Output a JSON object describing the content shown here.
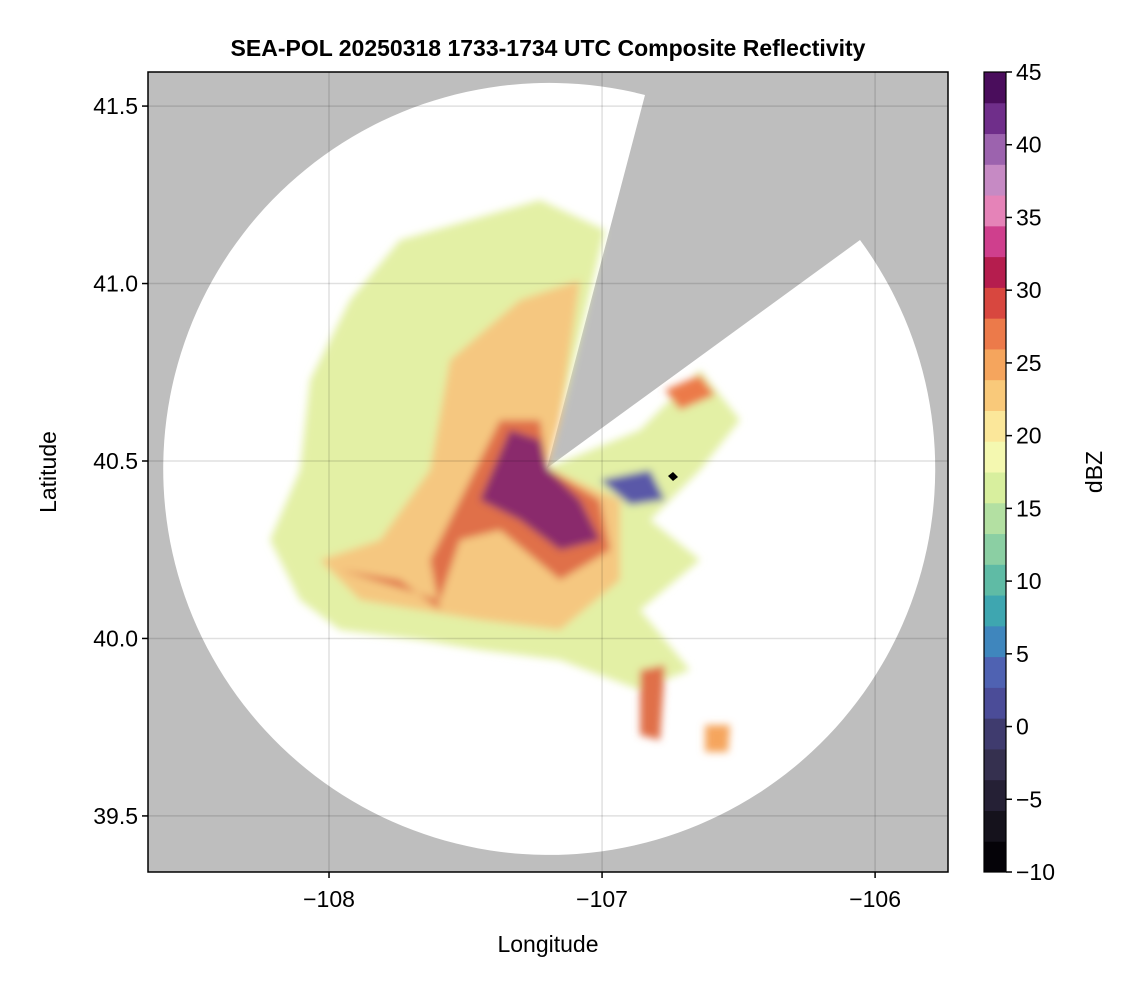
{
  "chart_data": {
    "type": "map",
    "title": "SEA-POL 20250318 1733-1734 UTC Composite Reflectivity",
    "x_label": "Longitude",
    "y_label": "Latitude",
    "xlim": [
      -108.663,
      -105.733
    ],
    "ylim": [
      39.342,
      41.596
    ],
    "xticks": [
      {
        "value": -108,
        "label": "−108"
      },
      {
        "value": -107,
        "label": "−107"
      },
      {
        "value": -106,
        "label": "−106"
      }
    ],
    "yticks": [
      {
        "value": 39.5,
        "label": "39.5"
      },
      {
        "value": 40.0,
        "label": "40.0"
      },
      40.5,
      {
        "value": 41.0,
        "label": "41.0"
      },
      41.5
    ],
    "grid": true,
    "background": "#bebebe",
    "colorbar": {
      "label": "dBZ",
      "lim": [
        -10,
        45
      ],
      "ticks": [
        {
          "value": -10,
          "label": "−10"
        },
        {
          "value": -5,
          "label": "−5"
        },
        0,
        5,
        10,
        15,
        20,
        25,
        30,
        35,
        40,
        45
      ],
      "colors": [
        "#050308",
        "#15121c",
        "#252035",
        "#35304f",
        "#3f3b6e",
        "#4b4c98",
        "#4f62b2",
        "#3f86bd",
        "#3ea6b0",
        "#5fbba5",
        "#8bcfa3",
        "#b3e0a2",
        "#d8ef9e",
        "#f4f8b0",
        "#fbe79a",
        "#f9c97a",
        "#f5a55d",
        "#ec7a4a",
        "#d8473f",
        "#b51d4e",
        "#cf3f8d",
        "#e583b8",
        "#c68ac4",
        "#9c63ae",
        "#6f2e8a",
        "#4a0d5c"
      ]
    }
  }
}
